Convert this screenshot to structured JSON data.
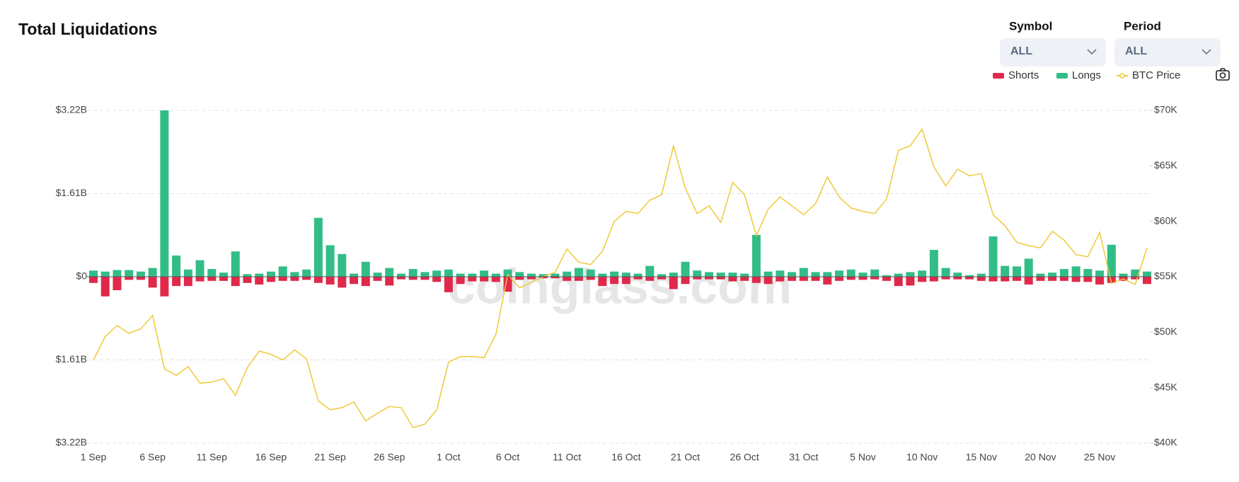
{
  "header": {
    "title": "Total Liquidations"
  },
  "controls": [
    {
      "label": "Symbol",
      "value": "ALL"
    },
    {
      "label": "Period",
      "value": "ALL"
    }
  ],
  "watermark": "coinglass.com",
  "chart_data": {
    "type": "bar",
    "legend": "top-right",
    "grid": true,
    "categories": [
      "1 Sep",
      null,
      null,
      null,
      null,
      "6 Sep",
      null,
      null,
      null,
      null,
      "11 Sep",
      null,
      null,
      null,
      null,
      "16 Sep",
      null,
      null,
      null,
      null,
      "21 Sep",
      null,
      null,
      null,
      null,
      "26 Sep",
      null,
      null,
      null,
      null,
      "1 Oct",
      null,
      null,
      null,
      null,
      "6 Oct",
      null,
      null,
      null,
      null,
      "11 Oct",
      null,
      null,
      null,
      null,
      "16 Oct",
      null,
      null,
      null,
      null,
      "21 Oct",
      null,
      null,
      null,
      null,
      "26 Oct",
      null,
      null,
      null,
      null,
      "31 Oct",
      null,
      null,
      null,
      null,
      "5 Nov",
      null,
      null,
      null,
      null,
      "10 Nov",
      null,
      null,
      null,
      null,
      "15 Nov",
      null,
      null,
      null,
      null,
      "20 Nov",
      null,
      null,
      null,
      null,
      "25 Nov",
      null,
      null,
      null,
      null
    ],
    "series": [
      {
        "name": "Shorts",
        "type": "bar",
        "color": "#e0294a",
        "values": [
          -0.12,
          -0.38,
          -0.26,
          -0.06,
          -0.06,
          -0.21,
          -0.38,
          -0.18,
          -0.18,
          -0.09,
          -0.08,
          -0.08,
          -0.18,
          -0.12,
          -0.15,
          -0.1,
          -0.08,
          -0.08,
          -0.06,
          -0.12,
          -0.15,
          -0.21,
          -0.14,
          -0.18,
          -0.08,
          -0.17,
          -0.05,
          -0.06,
          -0.06,
          -0.1,
          -0.3,
          -0.14,
          -0.09,
          -0.09,
          -0.1,
          -0.29,
          -0.06,
          -0.05,
          -0.03,
          -0.03,
          -0.08,
          -0.08,
          -0.06,
          -0.18,
          -0.14,
          -0.14,
          -0.05,
          -0.08,
          -0.05,
          -0.24,
          -0.14,
          -0.05,
          -0.05,
          -0.05,
          -0.09,
          -0.08,
          -0.12,
          -0.14,
          -0.09,
          -0.08,
          -0.08,
          -0.08,
          -0.15,
          -0.08,
          -0.06,
          -0.06,
          -0.05,
          -0.08,
          -0.18,
          -0.17,
          -0.1,
          -0.09,
          -0.05,
          -0.05,
          -0.05,
          -0.08,
          -0.09,
          -0.09,
          -0.08,
          -0.15,
          -0.08,
          -0.08,
          -0.08,
          -0.1,
          -0.1,
          -0.15,
          -0.12,
          -0.08,
          -0.05,
          -0.14
        ]
      },
      {
        "name": "Longs",
        "type": "bar",
        "color": "#32bd87",
        "values": [
          0.12,
          0.1,
          0.13,
          0.13,
          0.1,
          0.17,
          3.22,
          0.41,
          0.14,
          0.32,
          0.15,
          0.08,
          0.49,
          0.05,
          0.06,
          0.1,
          0.2,
          0.09,
          0.14,
          1.14,
          0.61,
          0.44,
          0.06,
          0.29,
          0.08,
          0.17,
          0.06,
          0.15,
          0.09,
          0.12,
          0.14,
          0.06,
          0.06,
          0.12,
          0.06,
          0.14,
          0.09,
          0.06,
          0.05,
          0.06,
          0.1,
          0.17,
          0.14,
          0.06,
          0.1,
          0.08,
          0.06,
          0.21,
          0.05,
          0.08,
          0.29,
          0.12,
          0.09,
          0.08,
          0.08,
          0.06,
          0.81,
          0.1,
          0.12,
          0.09,
          0.17,
          0.09,
          0.09,
          0.12,
          0.14,
          0.08,
          0.14,
          0.03,
          0.06,
          0.09,
          0.12,
          0.52,
          0.17,
          0.08,
          0.03,
          0.06,
          0.78,
          0.21,
          0.2,
          0.35,
          0.06,
          0.08,
          0.15,
          0.2,
          0.15,
          0.12,
          0.62,
          0.06,
          0.14,
          0.1
        ]
      },
      {
        "name": "BTC Price",
        "type": "line",
        "axis": "y2",
        "color": "#f0c93a",
        "values": [
          47500,
          49600,
          50600,
          49900,
          50300,
          51500,
          46700,
          46100,
          46900,
          45400,
          45500,
          45800,
          44300,
          46800,
          48300,
          48000,
          47500,
          48400,
          47600,
          43800,
          43000,
          43200,
          43700,
          42000,
          42700,
          43300,
          43200,
          41400,
          41700,
          43000,
          47300,
          47800,
          47800,
          47700,
          49800,
          55200,
          54000,
          54500,
          55000,
          55400,
          57500,
          56300,
          56100,
          57300,
          60000,
          60900,
          60700,
          61900,
          62400,
          66800,
          63000,
          60700,
          61400,
          59900,
          63500,
          62400,
          58700,
          61100,
          62200,
          61400,
          60600,
          61600,
          64000,
          62200,
          61200,
          60900,
          60700,
          62000,
          66400,
          66800,
          68300,
          64900,
          63200,
          64700,
          64100,
          64300,
          60600,
          59600,
          58100,
          57800,
          57600,
          59100,
          58300,
          57000,
          56800,
          59000,
          54400,
          54800,
          54300,
          57600
        ]
      }
    ],
    "ylim": [
      -3.22,
      3.22
    ],
    "yticks": [
      {
        "value": -3.22,
        "label": "$3.22B"
      },
      {
        "value": -1.61,
        "label": "$1.61B"
      },
      {
        "value": 0,
        "label": "$0"
      },
      {
        "value": 1.61,
        "label": "$1.61B"
      },
      {
        "value": 3.22,
        "label": "$3.22B"
      }
    ],
    "y2lim": [
      40000,
      70000
    ],
    "y2ticks": [
      {
        "value": 40000,
        "label": "$40K"
      },
      {
        "value": 45000,
        "label": "$45K"
      },
      {
        "value": 50000,
        "label": "$50K"
      },
      {
        "value": 55000,
        "label": "$55K"
      },
      {
        "value": 60000,
        "label": "$60K"
      },
      {
        "value": 65000,
        "label": "$65K"
      },
      {
        "value": 70000,
        "label": "$70K"
      }
    ]
  }
}
